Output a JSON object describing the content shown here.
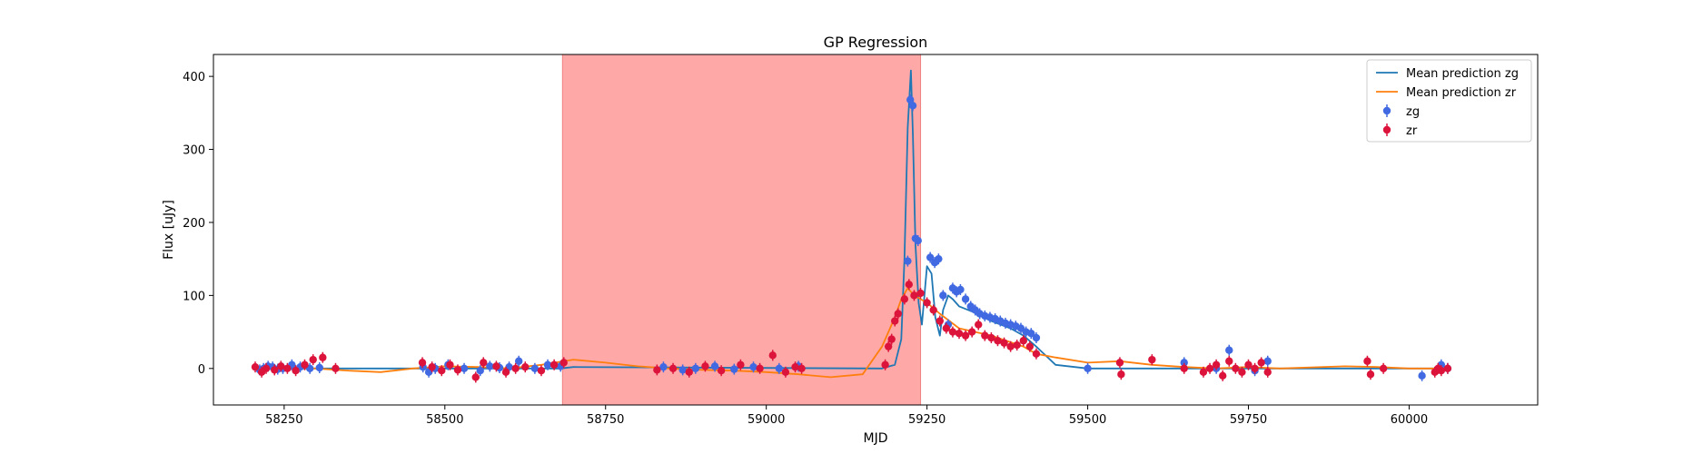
{
  "chart_data": {
    "type": "scatter",
    "title": "GP Regression",
    "xlabel": "MJD",
    "ylabel": "Flux [uJy]",
    "xlim": [
      58140,
      60200
    ],
    "ylim": [
      -50,
      430
    ],
    "xticks": [
      58250,
      58500,
      58750,
      59000,
      59250,
      59500,
      59750,
      60000
    ],
    "yticks": [
      0,
      100,
      200,
      300,
      400
    ],
    "grid": false,
    "legend_position": "top-right",
    "shaded_region": {
      "x_start": 58683,
      "x_end": 59240,
      "color": "#ffa8a8"
    },
    "series": [
      {
        "name": "Mean prediction zg",
        "kind": "line",
        "color": "#1f77b4",
        "x": [
          58200,
          58680,
          58700,
          59180,
          59200,
          59210,
          59215,
          59220,
          59225,
          59228,
          59232,
          59237,
          59242,
          59250,
          59257,
          59263,
          59270,
          59275,
          59283,
          59290,
          59300,
          59320,
          59350,
          59380,
          59400,
          59420,
          59450,
          59500,
          59600,
          59700,
          59800,
          59900,
          60000,
          60060
        ],
        "values": [
          0,
          0,
          2,
          0,
          5,
          40,
          150,
          330,
          408,
          320,
          170,
          90,
          60,
          140,
          130,
          70,
          45,
          80,
          100,
          95,
          85,
          78,
          65,
          55,
          45,
          30,
          5,
          0,
          0,
          0,
          0,
          0,
          0,
          0
        ]
      },
      {
        "name": "Mean prediction zr",
        "kind": "line",
        "color": "#ff7f0e",
        "x": [
          58200,
          58250,
          58300,
          58350,
          58400,
          58450,
          58500,
          58550,
          58600,
          58650,
          58700,
          58750,
          58800,
          58850,
          58900,
          58950,
          59000,
          59050,
          59100,
          59150,
          59180,
          59200,
          59210,
          59220,
          59230,
          59240,
          59250,
          59270,
          59300,
          59350,
          59400,
          59420,
          59450,
          59500,
          59550,
          59600,
          59650,
          59700,
          59750,
          59800,
          59900,
          59950,
          60000,
          60060
        ],
        "values": [
          0,
          2,
          0,
          -3,
          -5,
          0,
          3,
          2,
          0,
          5,
          12,
          8,
          3,
          0,
          -2,
          -3,
          -5,
          -8,
          -12,
          -8,
          30,
          70,
          95,
          110,
          100,
          95,
          90,
          75,
          55,
          45,
          30,
          20,
          15,
          8,
          10,
          5,
          2,
          0,
          2,
          0,
          3,
          2,
          0,
          0
        ]
      },
      {
        "name": "zg",
        "kind": "errorbar",
        "color": "#4169e1",
        "x": [
          58212,
          58218,
          58225,
          58232,
          58240,
          58248,
          58262,
          58275,
          58290,
          58305,
          58466,
          58475,
          58485,
          58505,
          58530,
          58555,
          58570,
          58585,
          58600,
          58615,
          58640,
          58660,
          58680,
          58840,
          58870,
          58890,
          58920,
          58950,
          58980,
          59020,
          59050,
          59220,
          59224,
          59228,
          59232,
          59236,
          59255,
          59262,
          59268,
          59275,
          59283,
          59290,
          59296,
          59302,
          59310,
          59318,
          59325,
          59332,
          59340,
          59348,
          59356,
          59364,
          59372,
          59380,
          59388,
          59396,
          59404,
          59412,
          59420,
          59500,
          59650,
          59700,
          59720,
          59760,
          59780,
          60020,
          60050,
          60060
        ],
        "values": [
          -2,
          0,
          3,
          2,
          -1,
          0,
          5,
          2,
          0,
          1,
          2,
          -5,
          0,
          5,
          0,
          -3,
          3,
          1,
          2,
          10,
          0,
          5,
          3,
          2,
          -2,
          0,
          3,
          -1,
          2,
          0,
          3,
          147,
          368,
          360,
          178,
          175,
          152,
          145,
          150,
          100,
          60,
          110,
          105,
          108,
          95,
          85,
          80,
          75,
          72,
          70,
          68,
          65,
          62,
          60,
          58,
          55,
          50,
          48,
          42,
          0,
          8,
          0,
          25,
          -3,
          10,
          -10,
          5,
          0
        ]
      },
      {
        "name": "zr",
        "kind": "errorbar",
        "color": "#dc143c",
        "x": [
          58205,
          58215,
          58222,
          58235,
          58245,
          58255,
          58268,
          58282,
          58295,
          58310,
          58330,
          58465,
          58480,
          58495,
          58508,
          58520,
          58548,
          58560,
          58580,
          58595,
          58610,
          58625,
          58650,
          58670,
          58685,
          58830,
          58855,
          58880,
          58905,
          58930,
          58960,
          58990,
          59010,
          59030,
          59045,
          59055,
          59185,
          59190,
          59195,
          59200,
          59205,
          59215,
          59222,
          59230,
          59240,
          59250,
          59260,
          59270,
          59280,
          59290,
          59300,
          59310,
          59320,
          59330,
          59340,
          59350,
          59360,
          59370,
          59380,
          59390,
          59400,
          59410,
          59420,
          59550,
          59552,
          59600,
          59650,
          59680,
          59690,
          59700,
          59710,
          59720,
          59730,
          59740,
          59750,
          59760,
          59770,
          59780,
          59935,
          59940,
          59960,
          60040,
          60045,
          60050,
          60060
        ],
        "values": [
          2,
          -5,
          0,
          -2,
          3,
          0,
          -3,
          5,
          12,
          15,
          0,
          8,
          2,
          -3,
          5,
          -2,
          -12,
          8,
          3,
          -5,
          0,
          2,
          -3,
          5,
          8,
          -2,
          0,
          -5,
          3,
          -3,
          5,
          0,
          18,
          -5,
          2,
          0,
          5,
          30,
          40,
          65,
          75,
          95,
          115,
          100,
          103,
          90,
          80,
          65,
          55,
          50,
          48,
          45,
          50,
          60,
          45,
          42,
          38,
          35,
          30,
          32,
          38,
          30,
          20,
          8,
          -8,
          12,
          0,
          -5,
          0,
          5,
          -10,
          10,
          0,
          -5,
          5,
          0,
          8,
          -5,
          10,
          -8,
          0,
          -5,
          0,
          -3,
          0
        ]
      }
    ]
  }
}
